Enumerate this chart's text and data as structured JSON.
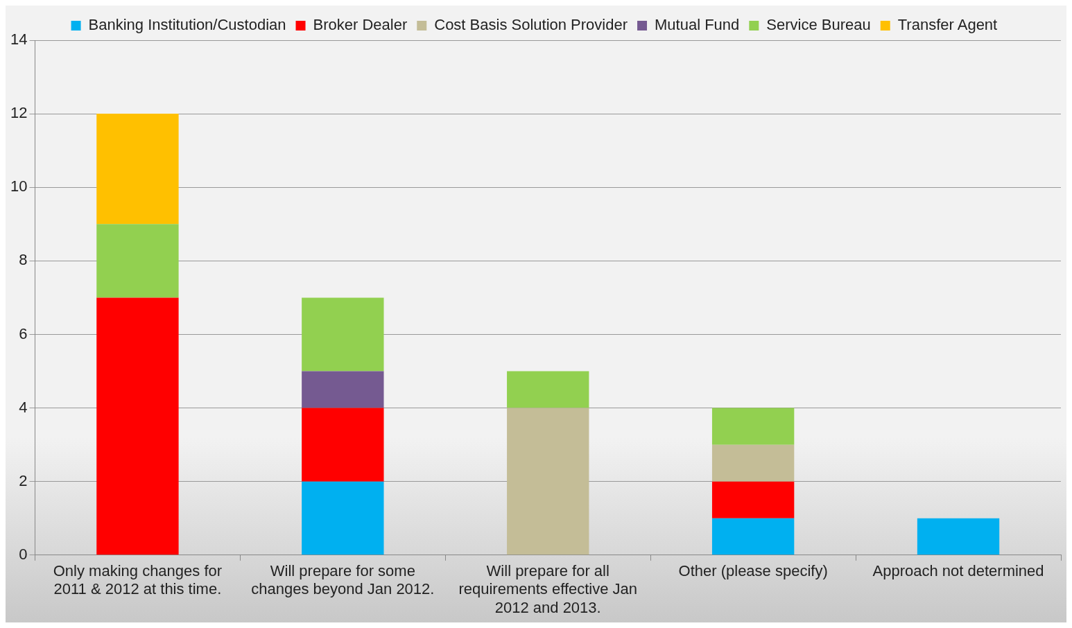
{
  "chart_data": {
    "type": "bar",
    "stacked": true,
    "categories": [
      "Only making changes for 2011 & 2012 at this time.",
      "Will prepare for some changes beyond Jan 2012.",
      "Will prepare for all requirements effective Jan 2012 and 2013.",
      "Other (please specify)",
      "Approach not determined"
    ],
    "series": [
      {
        "name": "Banking Institution/Custodian",
        "color": "#00b0f0",
        "values": [
          0,
          2,
          0,
          1,
          1
        ]
      },
      {
        "name": "Broker Dealer",
        "color": "#ff0000",
        "values": [
          7,
          2,
          0,
          1,
          0
        ]
      },
      {
        "name": "Cost Basis Solution Provider",
        "color": "#c4bd97",
        "values": [
          0,
          0,
          4,
          1,
          0
        ]
      },
      {
        "name": "Mutual Fund",
        "color": "#755a91",
        "values": [
          0,
          1,
          0,
          0,
          0
        ]
      },
      {
        "name": "Service Bureau",
        "color": "#92d050",
        "values": [
          2,
          2,
          1,
          1,
          0
        ]
      },
      {
        "name": "Transfer Agent",
        "color": "#ffc000",
        "values": [
          3,
          0,
          0,
          0,
          0
        ]
      }
    ],
    "ylim": [
      0,
      14
    ],
    "yticks": [
      0,
      2,
      4,
      6,
      8,
      10,
      12,
      14
    ],
    "grid": "y",
    "legend": "top"
  }
}
